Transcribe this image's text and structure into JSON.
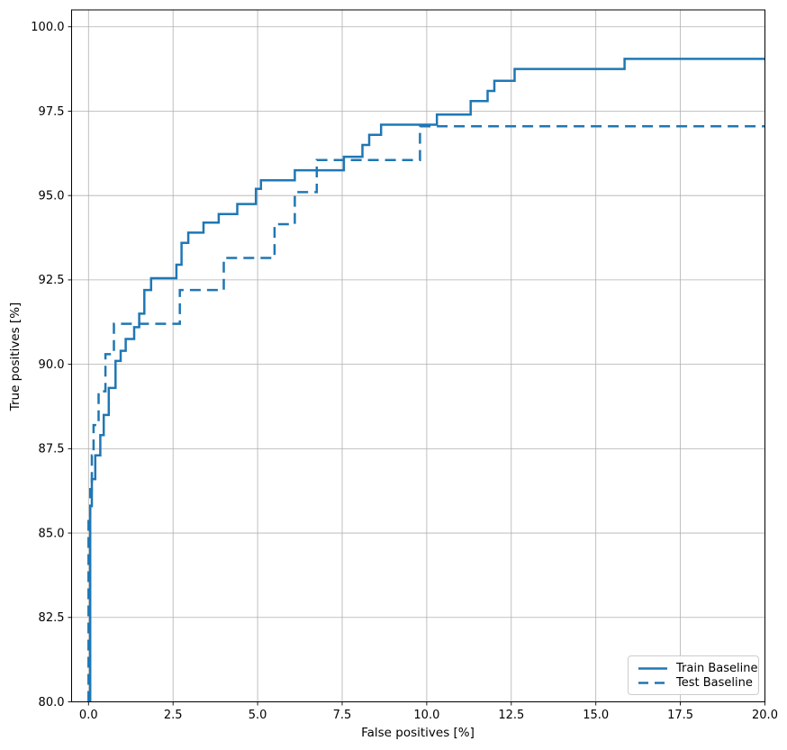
{
  "chart_data": {
    "type": "line",
    "title": "",
    "xlabel": "False positives [%]",
    "ylabel": "True positives [%]",
    "xlim": [
      -0.5,
      20
    ],
    "ylim": [
      80,
      100.5
    ],
    "xticks": [
      0,
      2.5,
      5,
      7.5,
      10,
      12.5,
      15,
      17.5,
      20
    ],
    "xtick_labels": [
      "0.0",
      "2.5",
      "5.0",
      "7.5",
      "10.0",
      "12.5",
      "15.0",
      "17.5",
      "20.0"
    ],
    "yticks": [
      80,
      82.5,
      85,
      87.5,
      90,
      92.5,
      95,
      97.5,
      100
    ],
    "ytick_labels": [
      "80.0",
      "82.5",
      "85.0",
      "87.5",
      "90.0",
      "92.5",
      "95.0",
      "97.5",
      "100.0"
    ],
    "grid": true,
    "grid_color": "#b0b0b0",
    "axis_color": "#000000",
    "line_color": "#1f77b4",
    "line_width": 2.5,
    "legend_position": "lower right",
    "series": [
      {
        "name": "Train Baseline",
        "line_style": "solid",
        "drawstyle": "steps",
        "x": [
          0.05,
          0.05,
          0.1,
          0.2,
          0.35,
          0.45,
          0.6,
          0.8,
          0.95,
          1.1,
          1.35,
          1.5,
          1.65,
          1.85,
          2.6,
          2.75,
          2.95,
          3.4,
          3.85,
          4.4,
          4.95,
          5.1,
          6.1,
          7.55,
          8.1,
          8.3,
          8.65,
          10.3,
          11.3,
          11.8,
          12.0,
          12.6,
          15.85,
          20.0
        ],
        "y": [
          80.0,
          85.8,
          86.6,
          87.3,
          87.9,
          88.5,
          89.3,
          90.1,
          90.4,
          90.75,
          91.1,
          91.5,
          92.2,
          92.55,
          92.95,
          93.6,
          93.9,
          94.2,
          94.45,
          94.75,
          95.2,
          95.45,
          95.75,
          96.15,
          96.5,
          96.8,
          97.1,
          97.4,
          97.8,
          98.1,
          98.4,
          98.75,
          99.05,
          99.05
        ]
      },
      {
        "name": "Test Baseline",
        "line_style": "dashed",
        "drawstyle": "steps",
        "x": [
          0.0,
          0.0,
          0.05,
          0.1,
          0.15,
          0.3,
          0.5,
          0.75,
          2.7,
          4.0,
          5.5,
          6.1,
          6.75,
          9.8,
          20.0
        ],
        "y": [
          80.0,
          85.5,
          86.3,
          87.3,
          88.2,
          89.2,
          90.3,
          91.2,
          92.2,
          93.15,
          94.15,
          95.1,
          96.05,
          97.05,
          97.05
        ]
      }
    ]
  }
}
